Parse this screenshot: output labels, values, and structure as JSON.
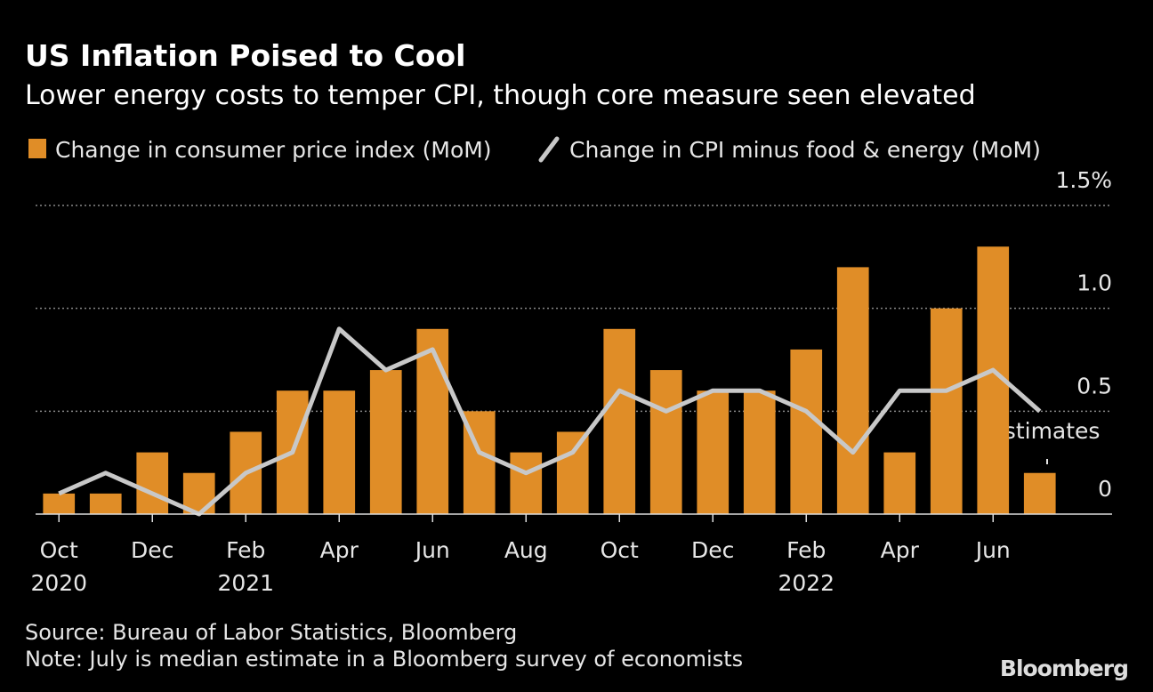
{
  "chart_data": {
    "type": "bar_line",
    "title": "US Inflation Poised to Cool",
    "subtitle": "Lower energy costs to temper CPI, though core measure seen elevated",
    "categories": [
      "Oct",
      null,
      "Dec",
      null,
      "Feb",
      null,
      "Apr",
      null,
      "Jun",
      null,
      "Aug",
      null,
      "Oct",
      null,
      "Dec",
      null,
      "Feb",
      null,
      "Apr",
      null,
      "Jun",
      null
    ],
    "category_years": [
      "2020",
      null,
      null,
      null,
      "2021",
      null,
      null,
      null,
      null,
      null,
      null,
      null,
      null,
      null,
      null,
      null,
      "2022",
      null,
      null,
      null,
      null,
      null
    ],
    "series": [
      {
        "name": "Change in consumer price index (MoM)",
        "type": "bar",
        "color": "#e08d27",
        "values": [
          0.1,
          0.1,
          0.3,
          0.2,
          0.4,
          0.6,
          0.6,
          0.7,
          0.9,
          0.5,
          0.3,
          0.4,
          0.9,
          0.7,
          0.6,
          0.6,
          0.8,
          1.2,
          0.3,
          1.0,
          1.3,
          0.2
        ]
      },
      {
        "name": "Change in CPI minus food & energy (MoM)",
        "type": "line",
        "color": "#c8c8c8",
        "values": [
          0.1,
          0.2,
          0.1,
          0.0,
          0.2,
          0.3,
          0.9,
          0.7,
          0.8,
          0.3,
          0.2,
          0.3,
          0.6,
          0.5,
          0.6,
          0.6,
          0.5,
          0.3,
          0.6,
          0.6,
          0.7,
          0.5
        ]
      }
    ],
    "ylim": [
      0,
      1.5
    ],
    "yticks": [
      0,
      0.5,
      {
        "value": 1.0,
        "label": "1.0"
      },
      {
        "value": 1.5,
        "label": "1.5%"
      }
    ],
    "grid": true,
    "annotation": "Estimates",
    "source": "Source: Bureau of Labor Statistics, Bloomberg",
    "note": "Note: July is median estimate in a Bloomberg survey of economists",
    "brand": "Bloomberg"
  }
}
